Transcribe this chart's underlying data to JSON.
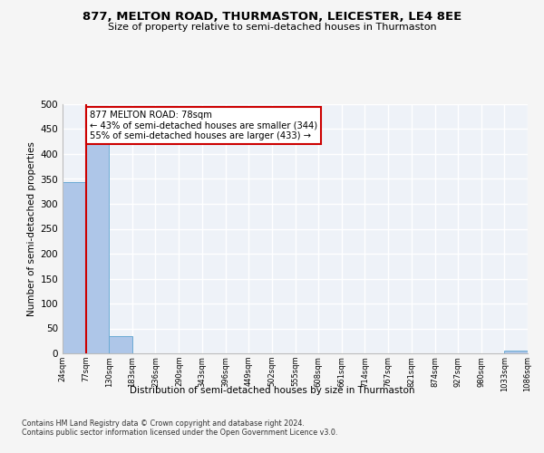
{
  "title1": "877, MELTON ROAD, THURMASTON, LEICESTER, LE4 8EE",
  "title2": "Size of property relative to semi-detached houses in Thurmaston",
  "xlabel": "Distribution of semi-detached houses by size in Thurmaston",
  "ylabel": "Number of semi-detached properties",
  "footnote": "Contains HM Land Registry data © Crown copyright and database right 2024.\nContains public sector information licensed under the Open Government Licence v3.0.",
  "property_size": 78,
  "property_label": "877 MELTON ROAD: 78sqm",
  "pct_smaller": 43,
  "n_smaller": 344,
  "pct_larger": 55,
  "n_larger": 433,
  "bin_edges": [
    24,
    77,
    130,
    183,
    236,
    290,
    343,
    396,
    449,
    502,
    555,
    608,
    661,
    714,
    767,
    821,
    874,
    927,
    980,
    1033,
    1086
  ],
  "bar_heights": [
    344,
    420,
    35,
    0,
    0,
    0,
    0,
    0,
    0,
    0,
    0,
    0,
    0,
    0,
    0,
    0,
    0,
    0,
    0,
    5
  ],
  "bar_color": "#aec6e8",
  "bar_edgecolor": "#6aaad4",
  "vline_color": "#cc0000",
  "vline_x": 78,
  "annotation_box_edgecolor": "#cc0000",
  "ylim": [
    0,
    500
  ],
  "yticks": [
    0,
    50,
    100,
    150,
    200,
    250,
    300,
    350,
    400,
    450,
    500
  ],
  "bg_color": "#eef2f8",
  "grid_color": "#ffffff",
  "fig_bg": "#f5f5f5"
}
